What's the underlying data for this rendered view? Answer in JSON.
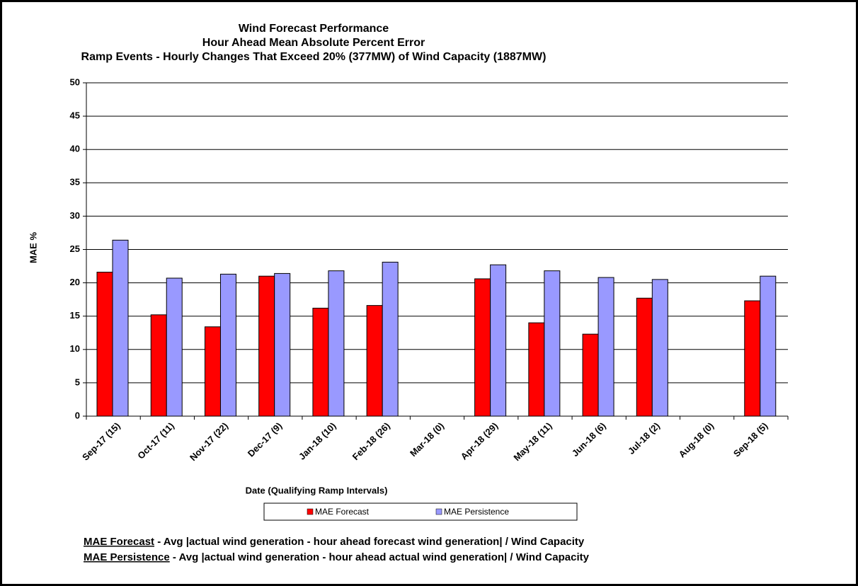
{
  "chart_data": {
    "type": "bar",
    "title": "Wind Forecast Performance",
    "subtitle": [
      "Hour Ahead Mean Absolute Percent Error",
      "Ramp Events - Hourly Changes That Exceed 20% (377MW) of Wind Capacity (1887MW)"
    ],
    "x_label": "Date (Qualifying Ramp Intervals)",
    "y_label": "MAE %",
    "categories": [
      "Sep-17 (15)",
      "Oct-17 (11)",
      "Nov-17 (22)",
      "Dec-17 (9)",
      "Jan-18 (10)",
      "Feb-18 (26)",
      "Mar-18 (0)",
      "Apr-18 (29)",
      "May-18 (11)",
      "Jun-18 (6)",
      "Jul-18 (2)",
      "Aug-18 (0)",
      "Sep-18 (5)"
    ],
    "series": [
      {
        "name": "MAE Forecast",
        "color": "#ff0000",
        "values": [
          21.6,
          15.2,
          13.4,
          21.0,
          16.2,
          16.6,
          null,
          20.6,
          14.0,
          12.3,
          17.7,
          null,
          17.3
        ]
      },
      {
        "name": "MAE Persistence",
        "color": "#9999ff",
        "values": [
          26.4,
          20.7,
          21.3,
          21.4,
          21.8,
          23.1,
          null,
          22.7,
          21.8,
          20.8,
          20.5,
          null,
          21.0
        ]
      }
    ],
    "ylim": [
      0,
      50
    ],
    "yticks": [
      0,
      5,
      10,
      15,
      20,
      25,
      30,
      35,
      40,
      45,
      50
    ],
    "grid": true,
    "notes": [
      {
        "term": "MAE Forecast",
        "text": " - Avg |actual wind generation - hour ahead forecast wind generation| / Wind Capacity"
      },
      {
        "term": "MAE Persistence",
        "text": " - Avg |actual wind generation - hour ahead actual wind generation| / Wind Capacity"
      }
    ]
  }
}
